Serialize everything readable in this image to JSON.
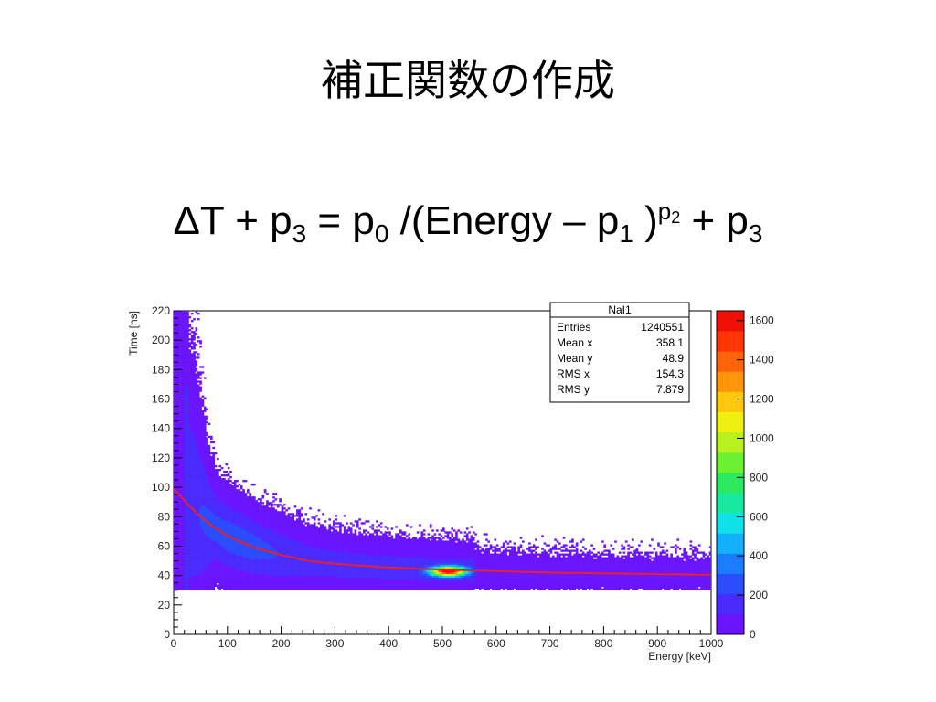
{
  "slide": {
    "title": "補正関数の作成",
    "formula": {
      "lhs_main": "ΔT + p",
      "lhs_sub": "3",
      "eq": " = p",
      "p0_sub": "0",
      "mid": " /(Energy – p",
      "p1_sub": "1",
      "close": " )",
      "p_sup_base": "p",
      "p_sup_sub": "2",
      "tail": " + p",
      "tail_sub": "3"
    }
  },
  "colors": {
    "fit_curve": "#e8202a",
    "palette": [
      "#6a14ff",
      "#4a2bff",
      "#2c4cff",
      "#1b7cff",
      "#12b0ff",
      "#10e0e8",
      "#18e8a0",
      "#2be860",
      "#6cf032",
      "#b8f020",
      "#f0f010",
      "#ffc80c",
      "#ff960a",
      "#ff6408",
      "#ff3606",
      "#f01006"
    ]
  },
  "chart_data": {
    "type": "heatmap",
    "title": "",
    "xlabel": "Energy [keV]",
    "ylabel": "Time [ns]",
    "xlim": [
      0,
      1000
    ],
    "ylim": [
      0,
      220
    ],
    "x_ticks": [
      0,
      100,
      200,
      300,
      400,
      500,
      600,
      700,
      800,
      900,
      1000
    ],
    "y_ticks": [
      0,
      20,
      40,
      60,
      80,
      100,
      120,
      140,
      160,
      180,
      200,
      220
    ],
    "grid": false,
    "colorbar": {
      "zlim": [
        0,
        1650
      ],
      "ticks": [
        0,
        200,
        400,
        600,
        800,
        1000,
        1200,
        1400,
        1600
      ]
    },
    "stats": {
      "name": "NaI1",
      "rows": [
        {
          "label": "Entries",
          "value": "1240551"
        },
        {
          "label": "Mean x",
          "value": "358.1"
        },
        {
          "label": "Mean y",
          "value": "48.9"
        },
        {
          "label": "RMS x",
          "value": "154.3"
        },
        {
          "label": "RMS y",
          "value": "7.879"
        }
      ]
    },
    "distribution": {
      "cutoff_time_ns": 30,
      "dense_region_energy_max_keV": 560,
      "peak": {
        "energy_keV": 511,
        "time_ns": 43,
        "counts": 1600
      }
    },
    "fit": {
      "function": "p0/(Energy - p1)^p2 + p3",
      "points": [
        {
          "x": 10,
          "y": 95
        },
        {
          "x": 30,
          "y": 87
        },
        {
          "x": 50,
          "y": 80
        },
        {
          "x": 75,
          "y": 73
        },
        {
          "x": 100,
          "y": 67
        },
        {
          "x": 150,
          "y": 59
        },
        {
          "x": 200,
          "y": 54
        },
        {
          "x": 250,
          "y": 50
        },
        {
          "x": 300,
          "y": 48
        },
        {
          "x": 400,
          "y": 45.5
        },
        {
          "x": 500,
          "y": 44
        },
        {
          "x": 600,
          "y": 43
        },
        {
          "x": 700,
          "y": 42
        },
        {
          "x": 800,
          "y": 41.5
        },
        {
          "x": 900,
          "y": 41
        },
        {
          "x": 1000,
          "y": 40.5
        }
      ]
    }
  }
}
